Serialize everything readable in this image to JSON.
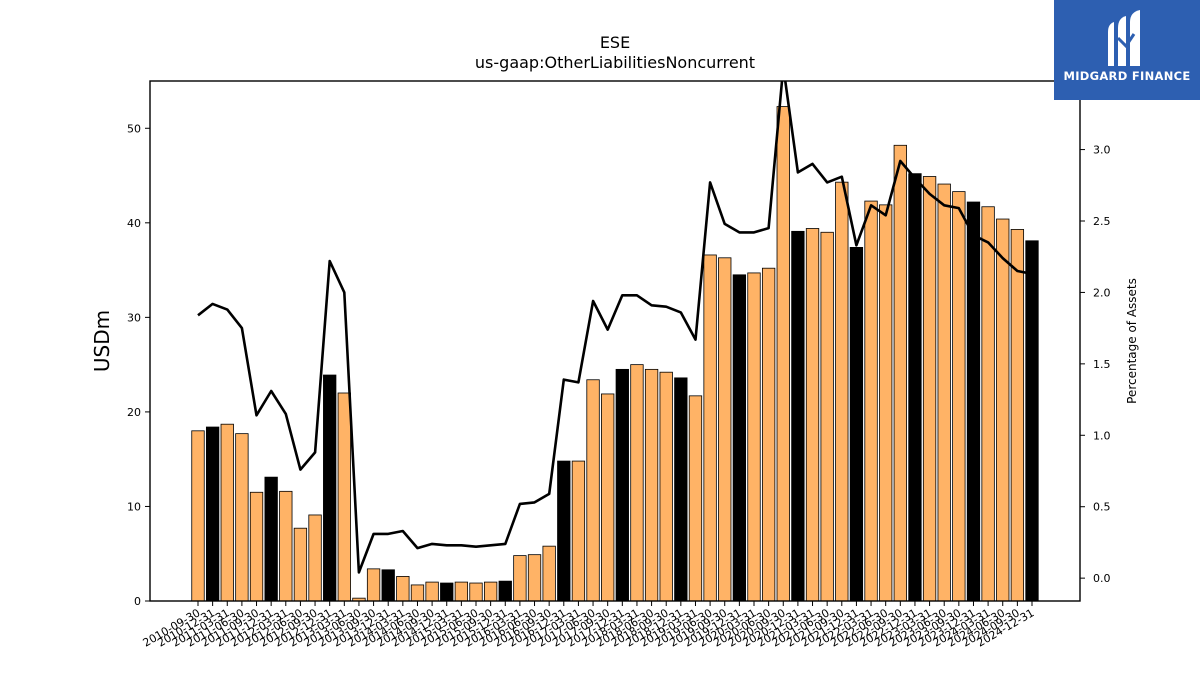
{
  "logo": {
    "text": "MIDGARD FINANCE",
    "icon": "midgard-logo-icon"
  },
  "chart_data": {
    "type": "bar",
    "title": "ESE",
    "subtitle": "us-gaap:OtherLiabilitiesNoncurrent",
    "ylabel": "USDm",
    "y2label": "Percentage of Assets",
    "ylim": [
      0,
      55
    ],
    "y2lim": [
      -0.16,
      3.48
    ],
    "yticks": [
      0,
      10,
      20,
      30,
      40,
      50
    ],
    "y2ticks": [
      0.0,
      0.5,
      1.0,
      1.5,
      2.0,
      2.5,
      3.0
    ],
    "grid": false,
    "colors": {
      "bar": "#ffb366",
      "bar_fiscal_year_end": "#000000",
      "line": "#000000"
    },
    "categories": [
      "2010-09-30",
      "2010-12-31",
      "2011-03-31",
      "2011-06-30",
      "2011-09-30",
      "2011-12-31",
      "2012-03-31",
      "2012-06-30",
      "2012-09-30",
      "2012-12-31",
      "2013-03-31",
      "2013-06-30",
      "2013-09-30",
      "2013-12-31",
      "2014-03-31",
      "2014-06-30",
      "2014-09-30",
      "2014-12-31",
      "2015-03-31",
      "2015-06-30",
      "2015-09-30",
      "2015-12-31",
      "2016-03-31",
      "2016-06-30",
      "2016-09-30",
      "2016-12-31",
      "2017-03-31",
      "2017-06-30",
      "2017-09-30",
      "2017-12-31",
      "2018-03-31",
      "2018-06-30",
      "2018-09-30",
      "2018-12-31",
      "2019-03-31",
      "2019-06-30",
      "2019-09-30",
      "2019-12-31",
      "2020-03-31",
      "2020-06-30",
      "2020-09-30",
      "2020-12-31",
      "2021-03-31",
      "2021-06-30",
      "2021-09-30",
      "2021-12-31",
      "2022-03-31",
      "2022-06-30",
      "2022-09-30",
      "2022-12-31",
      "2023-03-31",
      "2023-06-30",
      "2023-09-30",
      "2023-12-31",
      "2024-03-31",
      "2024-06-30",
      "2024-09-30",
      "2024-12-31"
    ],
    "series": [
      {
        "type": "bar",
        "axis": "left",
        "values": [
          18.0,
          18.4,
          18.7,
          17.7,
          11.5,
          13.1,
          11.6,
          7.7,
          9.1,
          23.9,
          22.0,
          0.3,
          3.4,
          3.3,
          2.6,
          1.7,
          2.0,
          1.9,
          2.0,
          1.9,
          2.0,
          2.1,
          4.8,
          4.9,
          5.8,
          14.8,
          14.8,
          23.4,
          21.9,
          24.5,
          25.0,
          24.5,
          24.2,
          23.6,
          21.7,
          36.6,
          36.3,
          34.5,
          34.7,
          35.2,
          52.3,
          39.1,
          39.4,
          39.0,
          44.3,
          37.4,
          42.3,
          41.9,
          48.2,
          45.2,
          44.9,
          44.1,
          43.3,
          42.2,
          41.7,
          40.4,
          39.3,
          38.1
        ],
        "fiscal_year_end": [
          false,
          true,
          false,
          false,
          false,
          true,
          false,
          false,
          false,
          true,
          false,
          false,
          false,
          true,
          false,
          false,
          false,
          true,
          false,
          false,
          false,
          true,
          false,
          false,
          false,
          true,
          false,
          false,
          false,
          true,
          false,
          false,
          false,
          true,
          false,
          false,
          false,
          true,
          false,
          false,
          false,
          true,
          false,
          false,
          false,
          true,
          false,
          false,
          false,
          true,
          false,
          false,
          false,
          true,
          false,
          false,
          false,
          true
        ]
      },
      {
        "type": "line",
        "axis": "right",
        "values": [
          1.84,
          1.92,
          1.88,
          1.75,
          1.14,
          1.31,
          1.15,
          0.76,
          0.88,
          2.22,
          2.0,
          0.04,
          0.31,
          0.31,
          0.33,
          0.21,
          0.24,
          0.23,
          0.23,
          0.22,
          0.23,
          0.24,
          0.52,
          0.53,
          0.59,
          1.39,
          1.37,
          1.94,
          1.74,
          1.98,
          1.98,
          1.91,
          1.9,
          1.86,
          1.67,
          2.77,
          2.48,
          2.42,
          2.42,
          2.45,
          3.58,
          2.84,
          2.9,
          2.77,
          2.81,
          2.33,
          2.61,
          2.54,
          2.92,
          2.8,
          2.69,
          2.61,
          2.59,
          2.4,
          2.35,
          2.24,
          2.15,
          2.13
        ]
      }
    ]
  }
}
